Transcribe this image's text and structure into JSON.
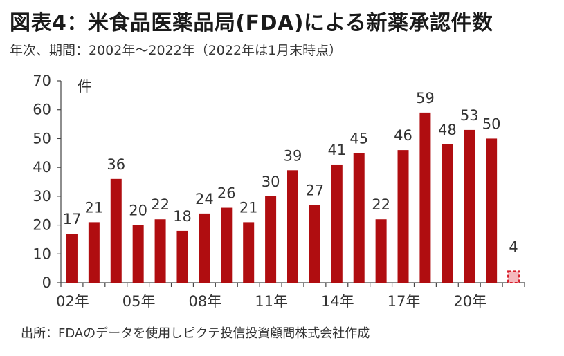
{
  "header": {
    "title": "図表4：米食品医薬品局(FDA)による新薬承認件数",
    "subtitle": "年次、期間：2002年～2022年（2022年は1月末時点）"
  },
  "footer": {
    "source": "出所：FDAのデータを使用しピクテ投信投資顧問株式会社作成"
  },
  "chart_data": {
    "type": "bar",
    "title": "図表4：米食品医薬品局(FDA)による新薬承認件数",
    "subtitle": "年次、期間：2002年～2022年（2022年は1月末時点）",
    "unit_label": "件",
    "categories": [
      "2002",
      "2003",
      "2004",
      "2005",
      "2006",
      "2007",
      "2008",
      "2009",
      "2010",
      "2011",
      "2012",
      "2013",
      "2014",
      "2015",
      "2016",
      "2017",
      "2018",
      "2019",
      "2020",
      "2021",
      "2022"
    ],
    "values": [
      17,
      21,
      36,
      20,
      22,
      18,
      24,
      26,
      21,
      30,
      39,
      27,
      41,
      45,
      22,
      46,
      59,
      48,
      53,
      50,
      4
    ],
    "x_tick_labels": [
      {
        "index": 0,
        "label": "02年"
      },
      {
        "index": 3,
        "label": "05年"
      },
      {
        "index": 6,
        "label": "08年"
      },
      {
        "index": 9,
        "label": "11年"
      },
      {
        "index": 12,
        "label": "14年"
      },
      {
        "index": 15,
        "label": "17年"
      },
      {
        "index": 18,
        "label": "20年"
      }
    ],
    "ylim": [
      0,
      70
    ],
    "y_ticks": [
      0,
      10,
      20,
      30,
      40,
      50,
      60,
      70
    ],
    "grid": false,
    "bar_color": "#b00d10",
    "highlight": {
      "index": 20,
      "fill": "#f5b8bd",
      "stroke": "#d81e2a",
      "dashed": true
    }
  }
}
